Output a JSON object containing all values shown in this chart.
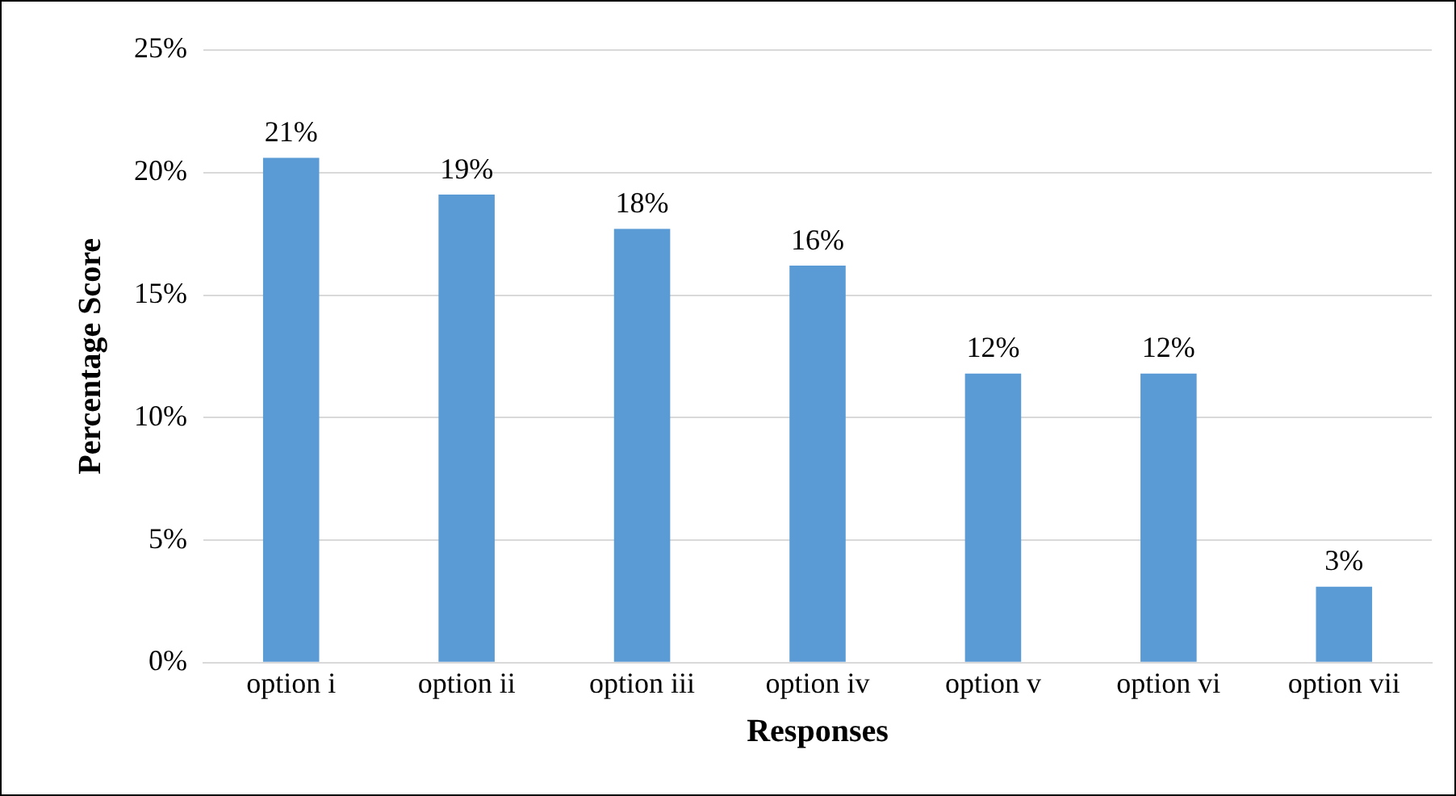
{
  "chart_data": {
    "type": "bar",
    "xlabel": "Responses",
    "ylabel": "Percentage Score",
    "categories": [
      "option i",
      "option ii",
      "option iii",
      "option iv",
      "option v",
      "option vi",
      "option vii"
    ],
    "values": [
      20.6,
      19.1,
      17.7,
      16.2,
      11.8,
      11.8,
      3.1
    ],
    "value_labels": [
      "21%",
      "19%",
      "18%",
      "16%",
      "12%",
      "12%",
      "3%"
    ],
    "color": "#5b9bd5",
    "ylim": [
      0,
      25
    ],
    "yticks": [
      {
        "value": 0,
        "label": "0%"
      },
      {
        "value": 5,
        "label": "5%"
      },
      {
        "value": 10,
        "label": "10%"
      },
      {
        "value": 15,
        "label": "15%"
      },
      {
        "value": 20,
        "label": "20%"
      },
      {
        "value": 25,
        "label": "25%"
      }
    ],
    "grid": "y",
    "legend": false
  }
}
